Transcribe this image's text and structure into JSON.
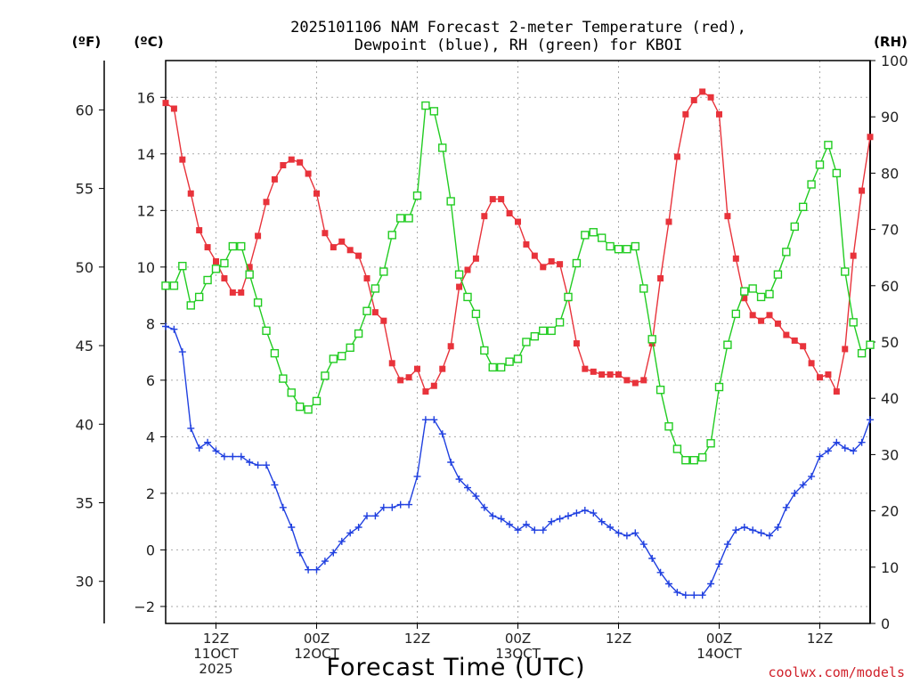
{
  "colors": {
    "temperature": "#e8333b",
    "dewpoint": "#2040e0",
    "rh": "#22cc22",
    "grid": "#aaaaaa",
    "axis": "#000000",
    "credit": "#d0202a"
  },
  "credit": "coolwx.com/models",
  "chart_data": {
    "type": "line",
    "title_lines": [
      "2025101106 NAM Forecast 2-meter Temperature (red),",
      "Dewpoint (blue), RH (green) for KBOI"
    ],
    "xlabel": "Forecast Time (UTC)",
    "units": {
      "fahrenheit": "(ºF)",
      "celsius": "(ºC)",
      "rh": "(RH)"
    },
    "x_unit": "forecast hour (1-hourly, first value at 06Z 11 Oct 2025)",
    "x_range": [
      0,
      84
    ],
    "x_ticks": [
      {
        "x": 6,
        "lines": [
          "12Z",
          "11OCT",
          "2025"
        ]
      },
      {
        "x": 18,
        "lines": [
          "00Z",
          "12OCT"
        ]
      },
      {
        "x": 30,
        "lines": [
          "12Z"
        ]
      },
      {
        "x": 42,
        "lines": [
          "00Z",
          "13OCT"
        ]
      },
      {
        "x": 54,
        "lines": [
          "12Z"
        ]
      },
      {
        "x": 66,
        "lines": [
          "00Z",
          "14OCT"
        ]
      },
      {
        "x": 78,
        "lines": [
          "12Z"
        ]
      }
    ],
    "y_left_celsius": {
      "range": [
        -2.6,
        17.3
      ],
      "ticks": [
        -2,
        0,
        2,
        4,
        6,
        8,
        10,
        12,
        14,
        16
      ]
    },
    "y_left_fahrenheit": {
      "ticks": [
        30,
        35,
        40,
        45,
        50,
        55,
        60
      ]
    },
    "y_right_rh": {
      "range": [
        0,
        100
      ],
      "ticks": [
        0,
        10,
        20,
        30,
        40,
        50,
        60,
        70,
        80,
        90,
        100
      ]
    },
    "series": [
      {
        "name": "Temperature",
        "axis": "celsius",
        "marker": "filled-square",
        "color": "#e8333b",
        "values": [
          15.8,
          15.6,
          13.8,
          12.6,
          11.3,
          10.7,
          10.2,
          9.6,
          9.1,
          9.1,
          10.0,
          11.1,
          12.3,
          13.1,
          13.6,
          13.8,
          13.7,
          13.3,
          12.6,
          11.2,
          10.7,
          10.9,
          10.6,
          10.4,
          9.6,
          8.4,
          8.1,
          6.6,
          6.0,
          6.1,
          6.4,
          5.6,
          5.8,
          6.4,
          7.2,
          9.3,
          9.9,
          10.3,
          11.8,
          12.4,
          12.4,
          11.9,
          11.6,
          10.8,
          10.4,
          10.0,
          10.2,
          10.1,
          8.9,
          7.3,
          6.4,
          6.3,
          6.2,
          6.2,
          6.2,
          6.0,
          5.9,
          6.0,
          7.3,
          9.6,
          11.6,
          13.9,
          15.4,
          15.9,
          16.2,
          16.0,
          15.4,
          11.8,
          10.3,
          8.9,
          8.3,
          8.1,
          8.3,
          8.0,
          7.6,
          7.4,
          7.2,
          6.6,
          6.1,
          6.2,
          5.6,
          7.1,
          10.4,
          12.7,
          14.6
        ]
      },
      {
        "name": "Dewpoint",
        "axis": "celsius",
        "marker": "plus",
        "color": "#2040e0",
        "values": [
          7.9,
          7.8,
          7.0,
          4.3,
          3.6,
          3.8,
          3.5,
          3.3,
          3.3,
          3.3,
          3.1,
          3.0,
          3.0,
          2.3,
          1.5,
          0.8,
          -0.1,
          -0.7,
          -0.7,
          -0.4,
          -0.1,
          0.3,
          0.6,
          0.8,
          1.2,
          1.2,
          1.5,
          1.5,
          1.6,
          1.6,
          2.6,
          4.6,
          4.6,
          4.1,
          3.1,
          2.5,
          2.2,
          1.9,
          1.5,
          1.2,
          1.1,
          0.9,
          0.7,
          0.9,
          0.7,
          0.7,
          1.0,
          1.1,
          1.2,
          1.3,
          1.4,
          1.3,
          1.0,
          0.8,
          0.6,
          0.5,
          0.6,
          0.2,
          -0.3,
          -0.8,
          -1.2,
          -1.5,
          -1.6,
          -1.6,
          -1.6,
          -1.2,
          -0.5,
          0.2,
          0.7,
          0.8,
          0.7,
          0.6,
          0.5,
          0.8,
          1.5,
          2.0,
          2.3,
          2.6,
          3.3,
          3.5,
          3.8,
          3.6,
          3.5,
          3.8,
          4.6
        ]
      },
      {
        "name": "RH",
        "axis": "rh",
        "marker": "open-square",
        "color": "#22cc22",
        "values": [
          60,
          60,
          63.5,
          56.5,
          58,
          61,
          63,
          64,
          67,
          67,
          62,
          57,
          52,
          48,
          43.5,
          41,
          38.5,
          38,
          39.5,
          44,
          47,
          47.5,
          49,
          51.5,
          55.5,
          59.5,
          62.5,
          69,
          72,
          72,
          76,
          92,
          91,
          84.5,
          75,
          62,
          58,
          55,
          48.5,
          45.5,
          45.5,
          46.5,
          47,
          50,
          51,
          52,
          52,
          53.5,
          58,
          64,
          69,
          69.5,
          68.5,
          67,
          66.5,
          66.5,
          67,
          59.5,
          50.5,
          41.5,
          35,
          31,
          29,
          29,
          29.5,
          32,
          42,
          49.5,
          55,
          59,
          59.5,
          58,
          58.5,
          62,
          66,
          70.5,
          74,
          78,
          81.5,
          85,
          80,
          62.5,
          53.5,
          48,
          49.5
        ]
      }
    ]
  }
}
